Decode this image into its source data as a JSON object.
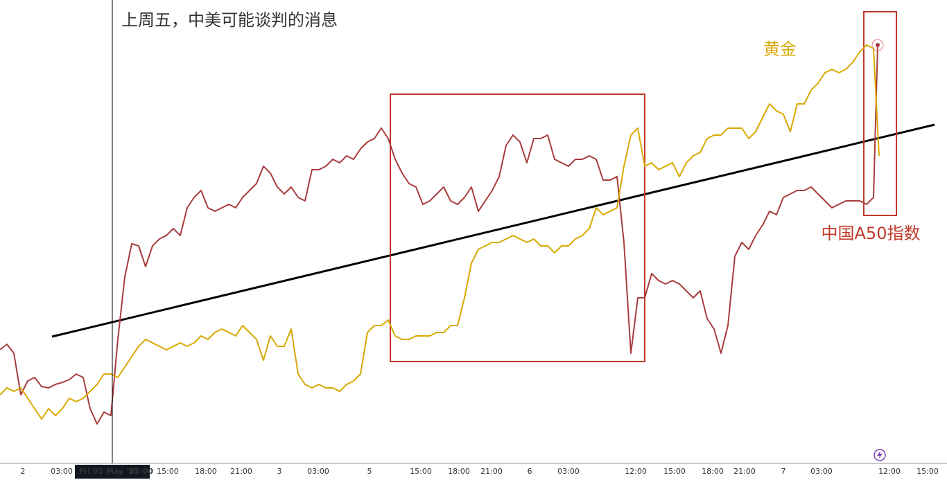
{
  "chart_data": {
    "type": "line",
    "title": "上周五，中美可能谈判的消息",
    "xlim": [
      0,
      136.6
    ],
    "ylim": [
      0,
      669
    ],
    "xticks": [
      {
        "value": 3.3,
        "label": "2"
      },
      {
        "value": 8.9,
        "label": "03:00"
      },
      {
        "value": 24.2,
        "label": "15:00"
      },
      {
        "value": 29.7,
        "label": "18:00"
      },
      {
        "value": 34.8,
        "label": "21:00"
      },
      {
        "value": 40.3,
        "label": "3"
      },
      {
        "value": 45.9,
        "label": "03:00"
      },
      {
        "value": 53.3,
        "label": "5"
      },
      {
        "value": 60.7,
        "label": "15:00"
      },
      {
        "value": 66.2,
        "label": "18:00"
      },
      {
        "value": 70.9,
        "label": "21:00"
      },
      {
        "value": 76.4,
        "label": "6"
      },
      {
        "value": 82.0,
        "label": "03:00"
      },
      {
        "value": 91.7,
        "label": "12:00"
      },
      {
        "value": 97.3,
        "label": "15:00"
      },
      {
        "value": 102.8,
        "label": "18:00"
      },
      {
        "value": 107.4,
        "label": "21:00"
      },
      {
        "value": 113.0,
        "label": "7"
      },
      {
        "value": 118.5,
        "label": "03:00"
      },
      {
        "value": 128.3,
        "label": "12:00"
      },
      {
        "value": 133.8,
        "label": "15:00"
      }
    ],
    "crosshair": {
      "x": 16.2,
      "date": "Fri 02 May '25",
      "time": "07:00"
    },
    "series": [
      {
        "name": "中国A50指数",
        "color": "#a83c3c",
        "x": [
          0,
          1,
          2,
          3,
          4,
          5,
          6,
          7,
          8,
          9,
          10,
          11,
          12,
          13,
          14,
          15,
          16,
          17,
          18,
          19,
          20,
          21,
          22,
          23,
          24,
          25,
          26,
          27,
          28,
          29,
          30,
          31,
          32,
          33,
          34,
          35,
          36,
          37,
          38,
          39,
          40,
          41,
          42,
          43,
          44,
          45,
          46,
          47,
          48,
          49,
          50,
          51,
          52,
          53,
          54,
          55,
          56,
          57,
          58,
          59,
          60,
          61,
          62,
          63,
          64,
          65,
          66,
          67,
          68,
          69,
          70,
          71,
          72,
          73,
          74,
          75,
          76,
          77,
          78,
          79,
          80,
          81,
          82,
          83,
          84,
          85,
          86,
          87,
          88,
          89,
          90,
          91,
          92,
          93,
          94,
          95,
          96,
          97,
          98,
          99,
          100,
          101,
          102,
          103,
          104,
          105,
          106,
          107,
          108,
          109,
          110,
          111,
          112,
          113,
          114,
          115,
          116,
          117,
          118,
          119,
          120,
          121,
          122,
          123,
          124,
          125,
          126,
          126.6
        ],
        "values": [
          164,
          172,
          159,
          99,
          119,
          124,
          111,
          109,
          114,
          117,
          121,
          129,
          124,
          79,
          57,
          74,
          69,
          179,
          269,
          317,
          314,
          284,
          314,
          324,
          329,
          339,
          329,
          369,
          384,
          394,
          369,
          364,
          369,
          374,
          369,
          384,
          394,
          404,
          429,
          419,
          399,
          389,
          399,
          384,
          379,
          424,
          424,
          429,
          439,
          434,
          444,
          439,
          454,
          464,
          469,
          484,
          469,
          439,
          419,
          404,
          399,
          374,
          379,
          389,
          399,
          379,
          374,
          384,
          399,
          364,
          379,
          394,
          414,
          459,
          474,
          464,
          434,
          469,
          469,
          474,
          439,
          434,
          429,
          439,
          439,
          444,
          439,
          409,
          409,
          414,
          319,
          159,
          239,
          239,
          274,
          264,
          259,
          264,
          259,
          249,
          239,
          249,
          209,
          194,
          159,
          199,
          299,
          319,
          309,
          329,
          344,
          364,
          359,
          384,
          389,
          394,
          394,
          399,
          389,
          379,
          369,
          374,
          379,
          379,
          379,
          374,
          384,
          604
        ]
      },
      {
        "name": "黄金",
        "color": "#d8a800",
        "x": [
          0,
          1,
          2,
          3,
          4,
          5,
          6,
          7,
          8,
          9,
          10,
          11,
          12,
          13,
          14,
          15,
          16,
          17,
          18,
          19,
          20,
          21,
          22,
          23,
          24,
          25,
          26,
          27,
          28,
          29,
          30,
          31,
          32,
          33,
          34,
          35,
          36,
          37,
          38,
          39,
          40,
          41,
          42,
          43,
          44,
          45,
          46,
          47,
          48,
          49,
          50,
          51,
          52,
          53,
          54,
          55,
          56,
          57,
          58,
          59,
          60,
          61,
          62,
          63,
          64,
          65,
          66,
          67,
          68,
          69,
          70,
          71,
          72,
          73,
          74,
          75,
          76,
          77,
          78,
          79,
          80,
          81,
          82,
          83,
          84,
          85,
          86,
          87,
          88,
          89,
          90,
          91,
          92,
          93,
          94,
          95,
          96,
          97,
          98,
          99,
          100,
          101,
          102,
          103,
          104,
          105,
          106,
          107,
          108,
          109,
          110,
          111,
          112,
          113,
          114,
          115,
          116,
          117,
          118,
          119,
          120,
          121,
          122,
          123,
          124,
          125,
          126,
          126.8
        ],
        "values": [
          99,
          109,
          104,
          109,
          94,
          79,
          64,
          79,
          69,
          79,
          94,
          89,
          94,
          104,
          114,
          129,
          129,
          124,
          139,
          154,
          169,
          179,
          174,
          169,
          164,
          169,
          174,
          169,
          174,
          184,
          179,
          189,
          194,
          189,
          184,
          199,
          189,
          179,
          149,
          184,
          169,
          169,
          194,
          129,
          114,
          109,
          114,
          109,
          109,
          104,
          114,
          119,
          129,
          189,
          199,
          199,
          207,
          184,
          179,
          179,
          184,
          184,
          184,
          189,
          189,
          199,
          199,
          239,
          289,
          309,
          314,
          319,
          319,
          324,
          329,
          324,
          319,
          324,
          314,
          314,
          304,
          314,
          314,
          324,
          329,
          339,
          369,
          359,
          364,
          369,
          429,
          474,
          484,
          429,
          434,
          424,
          429,
          434,
          414,
          434,
          444,
          449,
          469,
          474,
          474,
          484,
          484,
          484,
          469,
          479,
          499,
          519,
          509,
          504,
          479,
          519,
          519,
          539,
          549,
          564,
          569,
          564,
          569,
          579,
          594,
          604,
          599,
          444
        ]
      }
    ]
  }
}
